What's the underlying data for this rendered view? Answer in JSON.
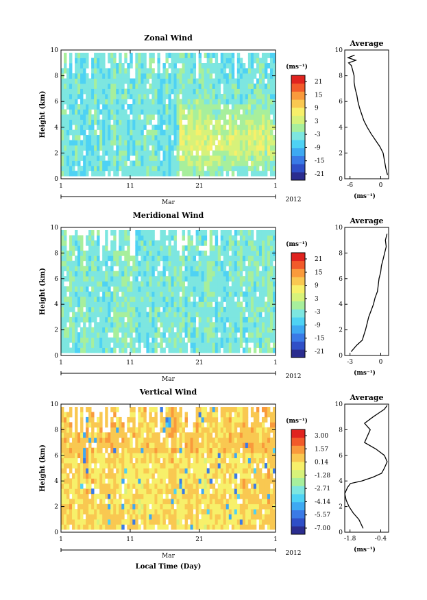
{
  "figure": {
    "xlabel": "Local Time (Day)"
  },
  "chart_data": [
    {
      "type": "heatmap",
      "title": "Zonal Wind",
      "ylabel": "Height (km)",
      "ylim": [
        0,
        10
      ],
      "yticks": [
        "0",
        "2",
        "4",
        "6",
        "8",
        "10"
      ],
      "xlim": [
        1,
        32
      ],
      "xticks": [
        {
          "day": 1,
          "label": "1"
        },
        {
          "day": 11,
          "label": "11"
        },
        {
          "day": 21,
          "label": "21"
        },
        {
          "day": 32,
          "label": "1"
        }
      ],
      "month_label": "Mar",
      "year_label": "2012",
      "colorbar": {
        "unit": "(ms⁻¹)",
        "min": -24,
        "max": 24,
        "step": 3,
        "tick_labels": [
          "21",
          "15",
          "9",
          "3",
          "-3",
          "-9",
          "-15",
          "-21"
        ]
      },
      "field": {
        "base": -4,
        "lateshift": 8,
        "amp": 4,
        "layer": 0.6
      },
      "profile": {
        "title": "Average",
        "xlabel": "(ms⁻¹)",
        "xlim": [
          -7,
          1
        ],
        "xticks": [
          "-6",
          "0"
        ],
        "yticks": [
          "0",
          "2",
          "4",
          "6",
          "8",
          "10"
        ],
        "heights": [
          0.3,
          0.8,
          1.5,
          2.0,
          2.5,
          3.0,
          3.5,
          4.0,
          4.5,
          5.0,
          5.5,
          6.0,
          6.5,
          7.0,
          7.5,
          8.0,
          8.5,
          8.8,
          9.0,
          9.2,
          9.4,
          9.6
        ],
        "values": [
          0.8,
          0.5,
          0.2,
          0.0,
          -0.6,
          -1.4,
          -2.2,
          -2.9,
          -3.5,
          -3.9,
          -4.3,
          -4.6,
          -4.8,
          -5.1,
          -5.3,
          -5.3,
          -5.6,
          -5.8,
          -6.3,
          -5.0,
          -6.4,
          -5.2
        ]
      }
    },
    {
      "type": "heatmap",
      "title": "Meridional Wind",
      "ylabel": "Height (km)",
      "ylim": [
        0,
        10
      ],
      "yticks": [
        "0",
        "2",
        "4",
        "6",
        "8",
        "10"
      ],
      "xlim": [
        1,
        32
      ],
      "xticks": [
        {
          "day": 1,
          "label": "1"
        },
        {
          "day": 11,
          "label": "11"
        },
        {
          "day": 21,
          "label": "21"
        },
        {
          "day": 32,
          "label": "1"
        }
      ],
      "month_label": "Mar",
      "year_label": "2012",
      "colorbar": {
        "unit": "(ms⁻¹)",
        "min": -24,
        "max": 24,
        "step": 3,
        "tick_labels": [
          "21",
          "15",
          "9",
          "3",
          "-3",
          "-9",
          "-15",
          "-21"
        ]
      },
      "field": {
        "base": -3,
        "lateshift": 0,
        "amp": 4,
        "layer": 0.7
      },
      "profile": {
        "title": "Average",
        "xlabel": "(ms⁻¹)",
        "xlim": [
          -4,
          1.5
        ],
        "xticks": [
          "-3",
          "0"
        ],
        "yticks": [
          "0",
          "2",
          "4",
          "6",
          "8",
          "10"
        ],
        "heights": [
          0.3,
          0.8,
          1.2,
          1.6,
          2.0,
          2.5,
          3.0,
          3.5,
          4.0,
          4.5,
          5.0,
          5.5,
          6.0,
          6.5,
          7.0,
          7.5,
          8.0,
          8.5,
          9.0,
          9.5
        ],
        "values": [
          -3.2,
          -2.5,
          -1.8,
          -1.6,
          -1.4,
          -1.2,
          -1.0,
          -0.7,
          -0.4,
          -0.2,
          0.1,
          0.2,
          0.3,
          0.5,
          0.6,
          0.8,
          1.0,
          1.2,
          1.1,
          1.3
        ]
      }
    },
    {
      "type": "heatmap",
      "title": "Vertical Wind",
      "ylabel": "Height (km)",
      "ylim": [
        0,
        10
      ],
      "yticks": [
        "0",
        "2",
        "4",
        "6",
        "8",
        "10"
      ],
      "xlim": [
        1,
        32
      ],
      "xticks": [
        {
          "day": 1,
          "label": "1"
        },
        {
          "day": 11,
          "label": "11"
        },
        {
          "day": 21,
          "label": "21"
        },
        {
          "day": 32,
          "label": "1"
        }
      ],
      "xlabel": "Local Time (Day)",
      "month_label": "Mar",
      "year_label": "2012",
      "colorbar": {
        "unit": "(ms⁻¹)",
        "min": -8,
        "max": 4,
        "step": 0.714,
        "tick_labels": [
          "3.00",
          "1.57",
          "0.14",
          "-1.28",
          "-2.71",
          "-4.14",
          "-5.57",
          "-7.00"
        ]
      },
      "field": {
        "base": 0.3,
        "lateshift": 0,
        "amp": 0.9,
        "layer": 0.5
      },
      "profile": {
        "title": "Average",
        "xlabel": "(ms⁻¹)",
        "xlim": [
          -1.9,
          -0.35
        ],
        "xticks": [
          "-1.8",
          "-0.4"
        ],
        "yticks": [
          "0",
          "2",
          "4",
          "6",
          "8",
          "10"
        ],
        "heights": [
          0.3,
          1.0,
          1.5,
          2.0,
          2.5,
          3.0,
          3.5,
          3.8,
          4.0,
          4.3,
          4.6,
          5.0,
          5.5,
          6.0,
          6.5,
          7.0,
          7.5,
          8.0,
          8.5,
          9.0,
          9.3,
          9.6,
          9.9
        ],
        "values": [
          -1.25,
          -1.4,
          -1.6,
          -1.75,
          -1.85,
          -1.9,
          -1.8,
          -1.7,
          -1.3,
          -0.9,
          -0.6,
          -0.5,
          -0.4,
          -0.5,
          -0.8,
          -1.2,
          -1.1,
          -1.0,
          -1.2,
          -0.9,
          -0.7,
          -0.5,
          -0.4
        ]
      }
    }
  ]
}
